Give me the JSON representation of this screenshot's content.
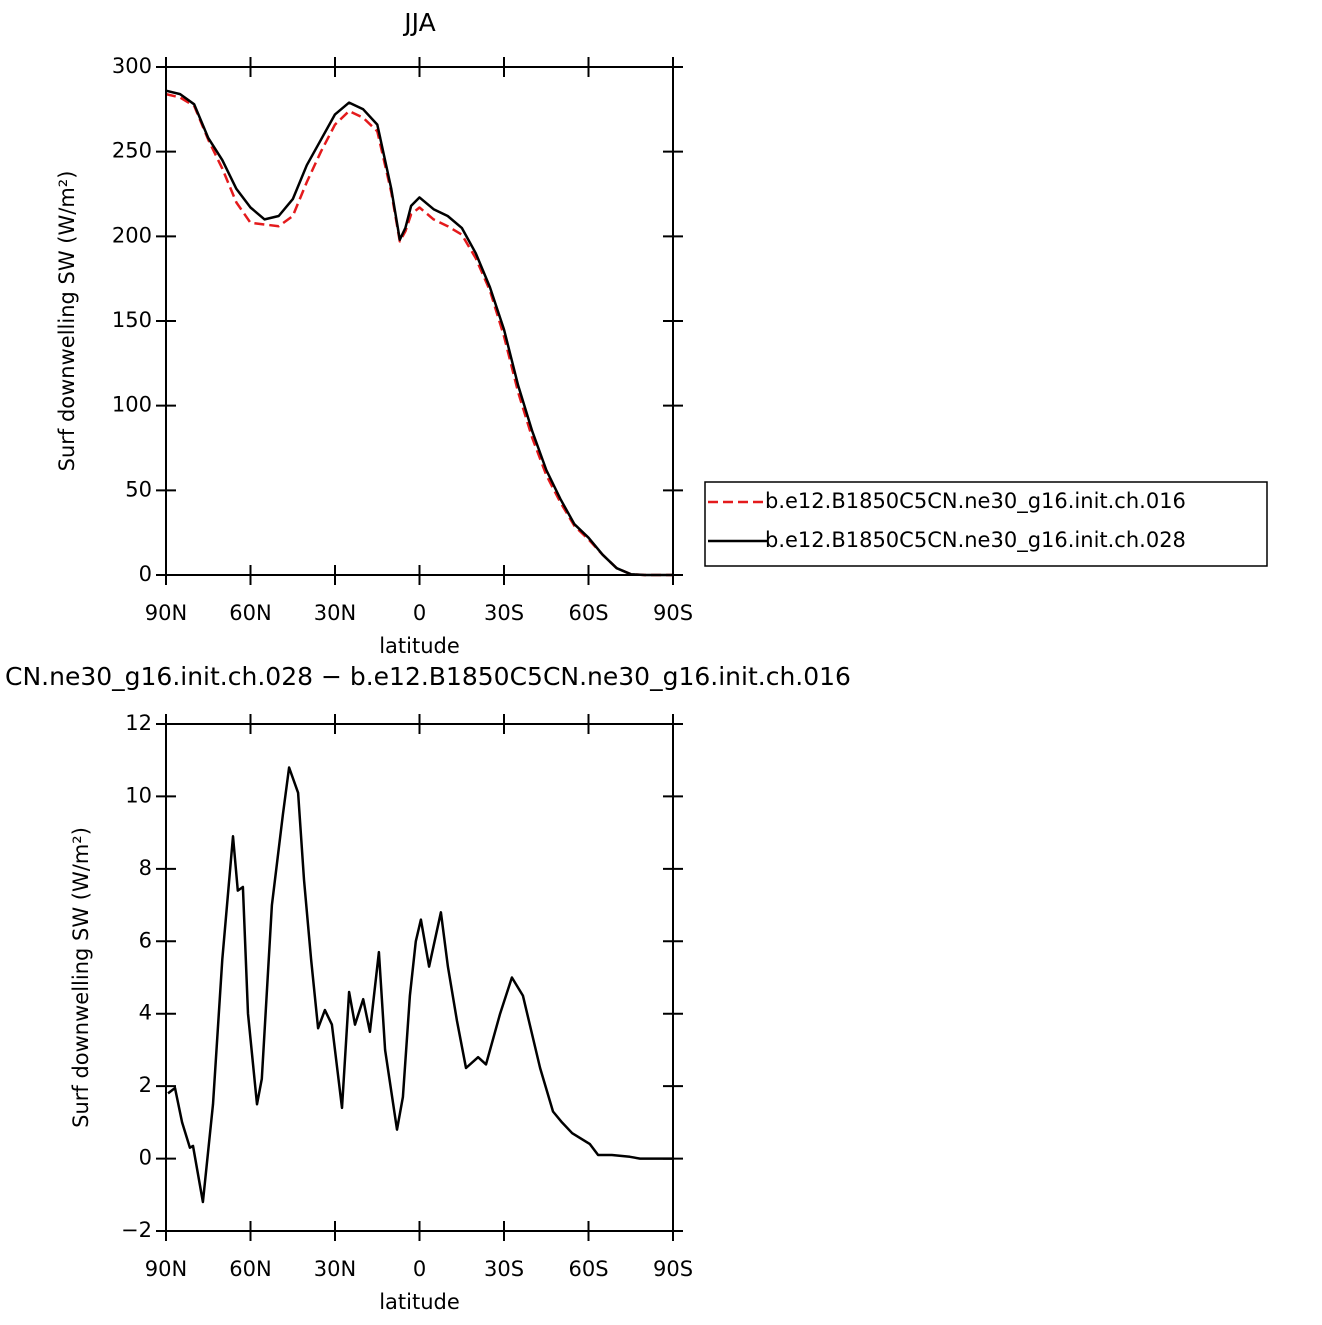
{
  "chart_data": [
    {
      "type": "line",
      "title": "JJA",
      "xlabel": "latitude",
      "ylabel": "Surf downwelling SW (W/m²)",
      "x": [
        90,
        85,
        80,
        75,
        70,
        65,
        60,
        55,
        50,
        45,
        40,
        35,
        30,
        25,
        20,
        15,
        10,
        7,
        5,
        3,
        0,
        -5,
        -10,
        -15,
        -20,
        -25,
        -30,
        -35,
        -40,
        -45,
        -50,
        -55,
        -60,
        -65,
        -70,
        -75,
        -80,
        -85,
        -90
      ],
      "series": [
        {
          "name": "b.e12.B1850C5CN.ne30_g16.init.ch.016",
          "color": "#e41a1c",
          "line_style": "dashed",
          "values": [
            284,
            282,
            277,
            257,
            240,
            220,
            208,
            207,
            206,
            212,
            232,
            250,
            266,
            274,
            270,
            262,
            226,
            197,
            203,
            213,
            217,
            210,
            206,
            201,
            187,
            168,
            141,
            108,
            81,
            59,
            43,
            29,
            21,
            12,
            4,
            0.5,
            0,
            0,
            0
          ]
        },
        {
          "name": "b.e12.B1850C5CN.ne30_g16.init.ch.028",
          "color": "#000000",
          "line_style": "solid",
          "values": [
            286,
            284,
            278,
            258,
            245,
            228,
            217,
            210,
            212,
            222,
            242,
            257,
            272,
            279,
            275,
            266,
            228,
            198,
            205,
            218,
            223,
            216,
            212,
            205,
            190,
            170,
            145,
            112,
            85,
            62,
            45,
            30,
            22,
            12,
            4,
            0.5,
            0,
            0,
            0
          ]
        }
      ],
      "xlim": [
        90,
        -90
      ],
      "xticks": [
        {
          "value": 90,
          "label": "90N"
        },
        {
          "value": 60,
          "label": "60N"
        },
        {
          "value": 30,
          "label": "30N"
        },
        0,
        {
          "value": -30,
          "label": "30S"
        },
        {
          "value": -60,
          "label": "60S"
        },
        {
          "value": -90,
          "label": "90S"
        }
      ],
      "ylim": [
        0,
        300
      ],
      "yticks": [
        0,
        50,
        100,
        150,
        200,
        250,
        300
      ],
      "legend": "outside-right"
    },
    {
      "type": "line",
      "title": "CN.ne30_g16.init.ch.028 − b.e12.B1850C5CN.ne30_g16.init.ch.016",
      "xlabel": "latitude",
      "ylabel": "Surf downwelling SW (W/m²)",
      "x": [
        89.3,
        86.8,
        84.3,
        81.5,
        80.4,
        76.9,
        73.3,
        70,
        66.2,
        64.5,
        62.7,
        60.9,
        57.7,
        56,
        52.4,
        48.5,
        46.3,
        43.1,
        41,
        38.5,
        36,
        33.6,
        31.1,
        27.5,
        25,
        22.9,
        20,
        17.6,
        14.4,
        12.2,
        8,
        5.9,
        3.4,
        1.3,
        -0.5,
        -3.4,
        -7.6,
        -10.1,
        -13.3,
        -16.5,
        -20.8,
        -23.6,
        -28.6,
        -32.8,
        -36.7,
        -42.8,
        -47.4,
        -50.6,
        -54.2,
        -60.5,
        -63.4,
        -68.3,
        -74.7,
        -78.3,
        -90
      ],
      "values": [
        1.8,
        1.95,
        1.0,
        0.3,
        0.35,
        -1.2,
        1.5,
        5.5,
        8.9,
        7.4,
        7.5,
        4,
        1.5,
        2.2,
        7,
        9.5,
        10.8,
        10.1,
        7.7,
        5.5,
        3.6,
        4.1,
        3.7,
        1.4,
        4.6,
        3.7,
        4.4,
        3.5,
        5.7,
        3.0,
        0.8,
        1.7,
        4.5,
        6.0,
        6.6,
        5.3,
        6.8,
        5.3,
        3.8,
        2.5,
        2.8,
        2.6,
        4.0,
        5.0,
        4.5,
        2.5,
        1.3,
        1.0,
        0.7,
        0.4,
        0.1,
        0.1,
        0.05,
        0,
        0
      ],
      "color": "#000000",
      "xlim": [
        90,
        -90
      ],
      "xticks": [
        {
          "value": 90,
          "label": "90N"
        },
        {
          "value": 60,
          "label": "60N"
        },
        {
          "value": 30,
          "label": "30N"
        },
        0,
        {
          "value": -30,
          "label": "30S"
        },
        {
          "value": -60,
          "label": "60S"
        },
        {
          "value": -90,
          "label": "90S"
        }
      ],
      "ylim": [
        -2,
        12
      ],
      "yticks": [
        {
          "value": -2,
          "label": "−2"
        },
        0,
        2,
        4,
        6,
        8,
        10,
        12
      ]
    }
  ]
}
